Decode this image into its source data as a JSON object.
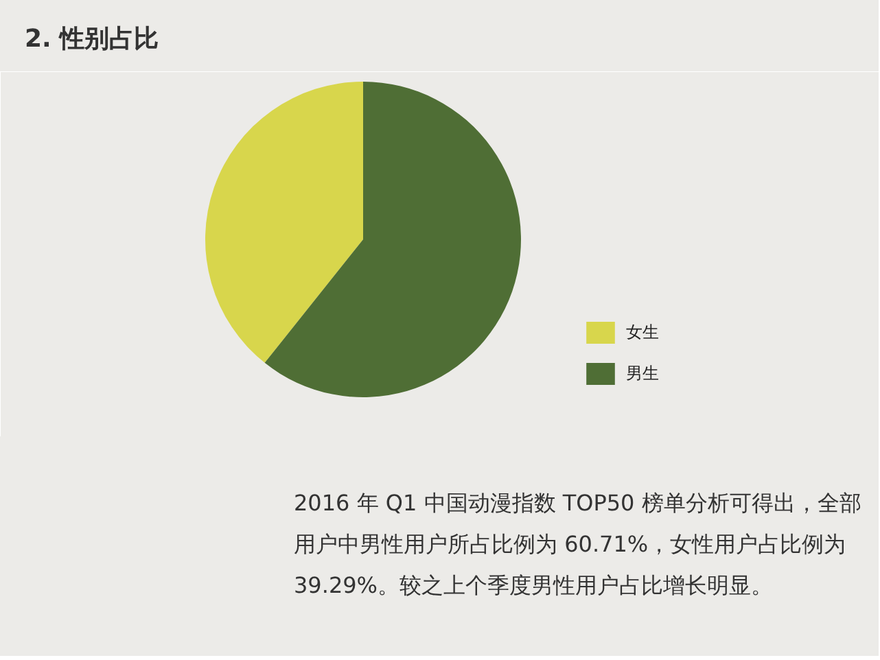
{
  "chart_data": {
    "type": "pie",
    "title": "2. 性别占比",
    "categories": [
      "女生",
      "男生"
    ],
    "values": [
      39.29,
      60.71
    ],
    "colors": [
      "#d8d64c",
      "#4f6e35"
    ],
    "legend": "right",
    "annotations": [
      "2016 年 Q1 中国动漫指数 TOP50 榜单分析可得出，全部用户中男性用户所占比例为 60.71%，女性用户占比例为 39.29%。较之上个季度男性用户占比增长明显。"
    ]
  }
}
